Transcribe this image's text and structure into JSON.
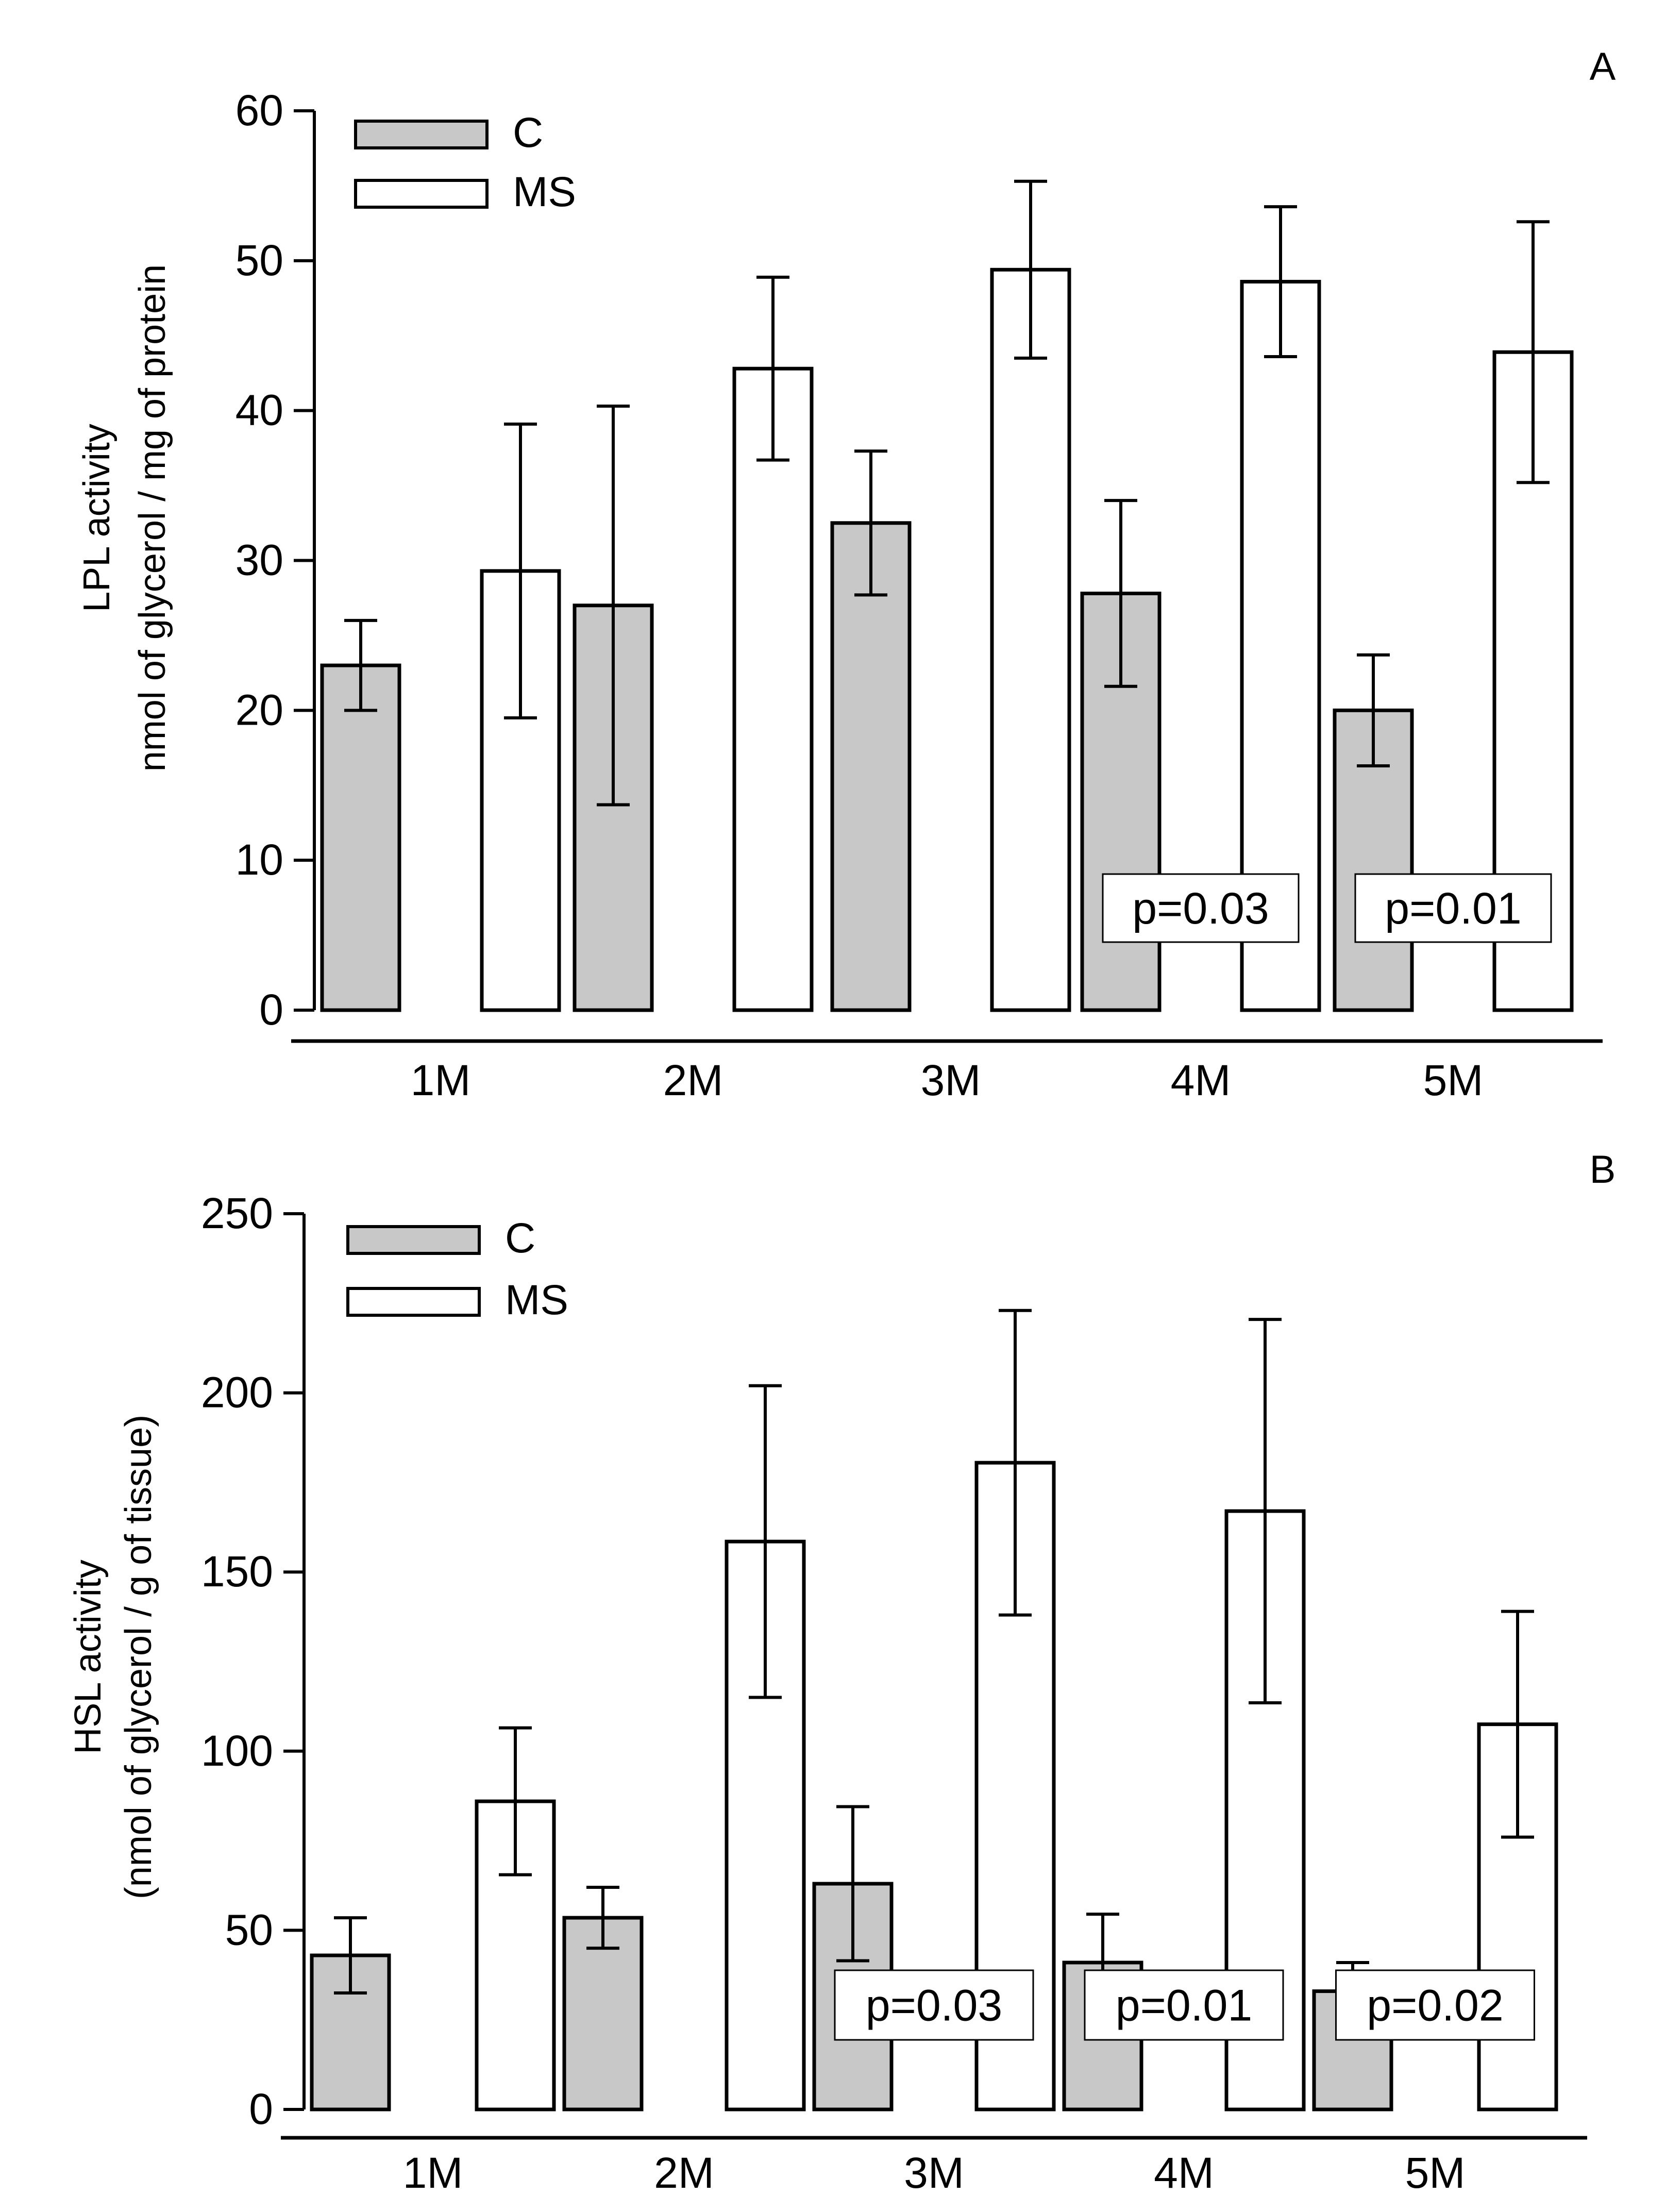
{
  "chart_data": [
    {
      "panel_label": "A",
      "type": "bar",
      "ylabel": "LPL activity",
      "ylabel_sub": "nmol of glycerol / mg of protein",
      "ylim": [
        0,
        60
      ],
      "yticks": [
        0,
        10,
        20,
        30,
        40,
        50,
        60
      ],
      "categories": [
        "1M",
        "2M",
        "3M",
        "4M",
        "5M"
      ],
      "series": [
        {
          "name": "C",
          "color": "#c8c8c8",
          "values": [
            23,
            27,
            32.5,
            27.8,
            20
          ],
          "errors": [
            3,
            13.3,
            4.8,
            6.2,
            3.7
          ]
        },
        {
          "name": "MS",
          "color": "#ffffff",
          "values": [
            29.3,
            42.8,
            49.4,
            48.6,
            43.9
          ],
          "errors": [
            9.8,
            6.1,
            5.9,
            5.0,
            8.7
          ]
        }
      ],
      "annotations": [
        {
          "category": "4M",
          "text": "p=0.03"
        },
        {
          "category": "5M",
          "text": "p=0.01"
        }
      ]
    },
    {
      "panel_label": "B",
      "type": "bar",
      "ylabel": "HSL activity",
      "ylabel_sub": "(nmol of glycerol / g of tissue)",
      "ylim": [
        0,
        250
      ],
      "yticks": [
        0,
        50,
        100,
        150,
        200,
        250
      ],
      "categories": [
        "1M",
        "2M",
        "3M",
        "4M",
        "5M"
      ],
      "series": [
        {
          "name": "C",
          "color": "#c8c8c8",
          "values": [
            43,
            53.5,
            63,
            41,
            33
          ],
          "errors": [
            10.5,
            8.5,
            21.5,
            13.5,
            8
          ]
        },
        {
          "name": "MS",
          "color": "#ffffff",
          "values": [
            86,
            158.5,
            180.5,
            167,
            107.5
          ],
          "errors": [
            20.5,
            43.5,
            42.5,
            53.5,
            31.5
          ]
        }
      ],
      "annotations": [
        {
          "category": "3M",
          "text": "p=0.03"
        },
        {
          "category": "4M",
          "text": "p=0.01"
        },
        {
          "category": "5M",
          "text": "p=0.02"
        }
      ]
    }
  ]
}
